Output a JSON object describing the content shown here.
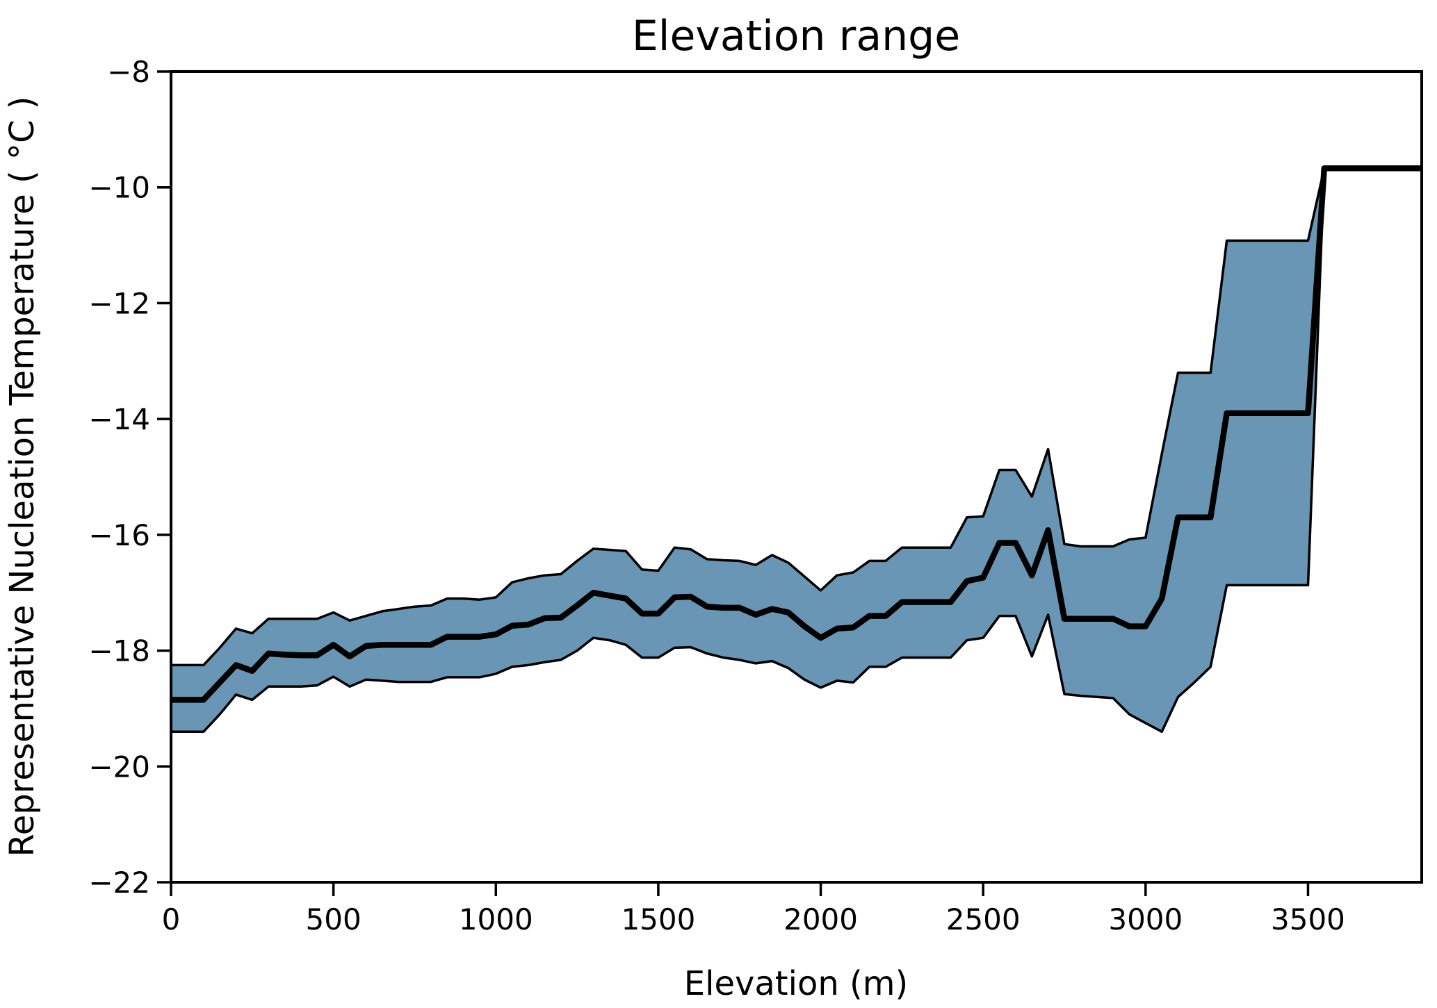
{
  "chart_data": {
    "type": "line",
    "title": "Elevation range",
    "xlabel": "Elevation (m)",
    "ylabel": "Representative Nucleation Temperature ( °C )",
    "xlim": [
      0,
      3850
    ],
    "ylim": [
      -22,
      -8
    ],
    "grid": false,
    "legend": "none",
    "xticks": [
      0,
      500,
      1000,
      1500,
      2000,
      2500,
      3000,
      3500
    ],
    "xtick_labels": [
      "0",
      "500",
      "1000",
      "1500",
      "2000",
      "2500",
      "3000",
      "3500"
    ],
    "yticks": [
      -8,
      -10,
      -12,
      -14,
      -16,
      -18,
      -20,
      -22
    ],
    "ytick_labels": [
      "−8",
      "−10",
      "−12",
      "−14",
      "−16",
      "−18",
      "−20",
      "−22"
    ],
    "colors": {
      "line": "#000000",
      "band_fill": "#6896b4",
      "band_edge": "#000000",
      "axis": "#000000"
    },
    "x": [
      0,
      50,
      100,
      150,
      200,
      250,
      300,
      350,
      400,
      450,
      500,
      550,
      600,
      650,
      700,
      750,
      800,
      850,
      900,
      950,
      1000,
      1050,
      1100,
      1150,
      1200,
      1250,
      1300,
      1350,
      1400,
      1450,
      1500,
      1550,
      1600,
      1650,
      1700,
      1750,
      1800,
      1850,
      1900,
      1950,
      2000,
      2050,
      2100,
      2150,
      2200,
      2250,
      2300,
      2350,
      2400,
      2450,
      2500,
      2550,
      2600,
      2650,
      2700,
      2750,
      2800,
      2850,
      2900,
      2950,
      3000,
      3050,
      3100,
      3150,
      3200,
      3250,
      3300,
      3350,
      3400,
      3450,
      3500,
      3550,
      3600,
      3650,
      3700,
      3750,
      3800,
      3850
    ],
    "series": [
      {
        "name": "representative_nucleation_temperature",
        "values": [
          -18.85,
          -18.85,
          -18.85,
          -18.55,
          -18.25,
          -18.35,
          -18.05,
          -18.07,
          -18.08,
          -18.08,
          -17.9,
          -18.1,
          -17.92,
          -17.9,
          -17.9,
          -17.9,
          -17.9,
          -17.76,
          -17.76,
          -17.76,
          -17.72,
          -17.57,
          -17.55,
          -17.44,
          -17.43,
          -17.22,
          -17.0,
          -17.05,
          -17.1,
          -17.36,
          -17.36,
          -17.08,
          -17.07,
          -17.24,
          -17.26,
          -17.26,
          -17.38,
          -17.28,
          -17.34,
          -17.58,
          -17.78,
          -17.62,
          -17.6,
          -17.4,
          -17.4,
          -17.16,
          -17.16,
          -17.16,
          -17.16,
          -16.8,
          -16.74,
          -16.14,
          -16.14,
          -16.7,
          -15.92,
          -17.45,
          -17.45,
          -17.45,
          -17.45,
          -17.58,
          -17.58,
          -17.1,
          -15.7,
          -15.7,
          -15.7,
          -13.9,
          -13.9,
          -13.9,
          -13.9,
          -13.9,
          -13.9,
          -9.67,
          -9.67,
          -9.67,
          -9.67,
          -9.67,
          -9.67,
          -9.67
        ]
      },
      {
        "name": "band_upper",
        "values": [
          -18.25,
          -18.25,
          -18.25,
          -17.95,
          -17.62,
          -17.7,
          -17.45,
          -17.45,
          -17.45,
          -17.45,
          -17.34,
          -17.48,
          -17.4,
          -17.32,
          -17.28,
          -17.24,
          -17.22,
          -17.1,
          -17.1,
          -17.12,
          -17.08,
          -16.82,
          -16.75,
          -16.7,
          -16.68,
          -16.45,
          -16.24,
          -16.26,
          -16.28,
          -16.6,
          -16.62,
          -16.22,
          -16.25,
          -16.42,
          -16.44,
          -16.45,
          -16.52,
          -16.35,
          -16.48,
          -16.72,
          -16.96,
          -16.7,
          -16.65,
          -16.45,
          -16.45,
          -16.22,
          -16.22,
          -16.22,
          -16.22,
          -15.7,
          -15.68,
          -14.88,
          -14.88,
          -15.34,
          -14.52,
          -16.16,
          -16.2,
          -16.2,
          -16.2,
          -16.08,
          -16.05,
          -14.6,
          -13.2,
          -13.2,
          -13.2,
          -10.92,
          -10.92,
          -10.92,
          -10.92,
          -10.92,
          -10.92,
          -9.67,
          -9.67,
          -9.67,
          -9.67,
          -9.67,
          -9.67,
          -9.67
        ]
      },
      {
        "name": "band_lower",
        "values": [
          -19.4,
          -19.4,
          -19.4,
          -19.1,
          -18.76,
          -18.85,
          -18.62,
          -18.62,
          -18.62,
          -18.6,
          -18.45,
          -18.62,
          -18.5,
          -18.52,
          -18.54,
          -18.54,
          -18.54,
          -18.46,
          -18.46,
          -18.46,
          -18.4,
          -18.28,
          -18.25,
          -18.2,
          -18.16,
          -18.0,
          -17.78,
          -17.82,
          -17.9,
          -18.12,
          -18.12,
          -17.95,
          -17.94,
          -18.05,
          -18.12,
          -18.16,
          -18.22,
          -18.18,
          -18.3,
          -18.5,
          -18.64,
          -18.52,
          -18.55,
          -18.28,
          -18.28,
          -18.12,
          -18.12,
          -18.12,
          -18.12,
          -17.82,
          -17.78,
          -17.4,
          -17.4,
          -18.1,
          -17.38,
          -18.75,
          -18.78,
          -18.8,
          -18.82,
          -19.1,
          -19.25,
          -19.4,
          -18.8,
          -18.55,
          -18.28,
          -16.87,
          -16.87,
          -16.87,
          -16.87,
          -16.87,
          -16.87,
          -9.67,
          -9.67,
          -9.67,
          -9.67,
          -9.67,
          -9.67,
          -9.67
        ]
      }
    ]
  }
}
